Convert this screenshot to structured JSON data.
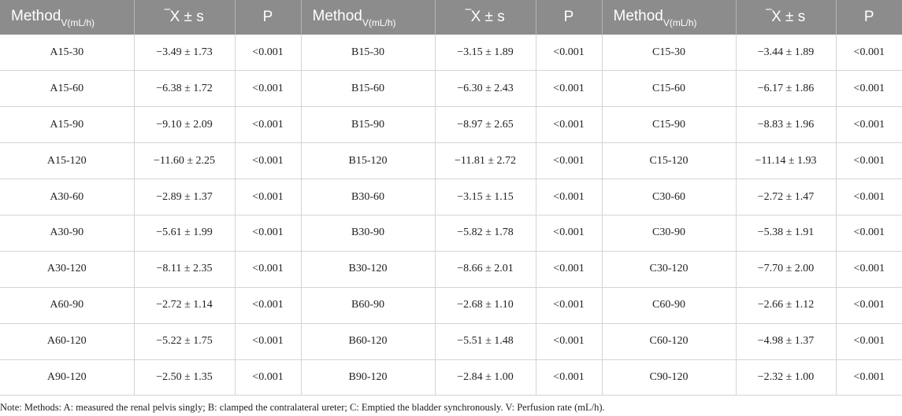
{
  "table": {
    "headers": [
      {
        "main": "Method",
        "sub": "V(mL/h)"
      },
      {
        "main": "‾X ± s",
        "sub": ""
      },
      {
        "main": "P",
        "sub": ""
      },
      {
        "main": "Method",
        "sub": "V(mL/h)"
      },
      {
        "main": "‾X ± s",
        "sub": ""
      },
      {
        "main": "P",
        "sub": ""
      },
      {
        "main": "Method",
        "sub": "V(mL/h)"
      },
      {
        "main": "‾X ± s",
        "sub": ""
      },
      {
        "main": "P",
        "sub": ""
      }
    ],
    "rows": [
      [
        "A15-30",
        "−3.49 ± 1.73",
        "<0.001",
        "B15-30",
        "−3.15 ± 1.89",
        "<0.001",
        "C15-30",
        "−3.44 ± 1.89",
        "<0.001"
      ],
      [
        "A15-60",
        "−6.38 ± 1.72",
        "<0.001",
        "B15-60",
        "−6.30 ± 2.43",
        "<0.001",
        "C15-60",
        "−6.17 ± 1.86",
        "<0.001"
      ],
      [
        "A15-90",
        "−9.10 ± 2.09",
        "<0.001",
        "B15-90",
        "−8.97 ± 2.65",
        "<0.001",
        "C15-90",
        "−8.83 ± 1.96",
        "<0.001"
      ],
      [
        "A15-120",
        "−11.60 ± 2.25",
        "<0.001",
        "B15-120",
        "−11.81 ± 2.72",
        "<0.001",
        "C15-120",
        "−11.14 ± 1.93",
        "<0.001"
      ],
      [
        "A30-60",
        "−2.89 ± 1.37",
        "<0.001",
        "B30-60",
        "−3.15 ± 1.15",
        "<0.001",
        "C30-60",
        "−2.72 ± 1.47",
        "<0.001"
      ],
      [
        "A30-90",
        "−5.61 ± 1.99",
        "<0.001",
        "B30-90",
        "−5.82 ± 1.78",
        "<0.001",
        "C30-90",
        "−5.38 ± 1.91",
        "<0.001"
      ],
      [
        "A30-120",
        "−8.11 ± 2.35",
        "<0.001",
        "B30-120",
        "−8.66 ± 2.01",
        "<0.001",
        "C30-120",
        "−7.70 ± 2.00",
        "<0.001"
      ],
      [
        "A60-90",
        "−2.72 ± 1.14",
        "<0.001",
        "B60-90",
        "−2.68 ± 1.10",
        "<0.001",
        "C60-90",
        "−2.66 ± 1.12",
        "<0.001"
      ],
      [
        "A60-120",
        "−5.22 ± 1.75",
        "<0.001",
        "B60-120",
        "−5.51 ± 1.48",
        "<0.001",
        "C60-120",
        "−4.98 ± 1.37",
        "<0.001"
      ],
      [
        "A90-120",
        "−2.50 ± 1.35",
        "<0.001",
        "B90-120",
        "−2.84 ± 1.00",
        "<0.001",
        "C90-120",
        "−2.32 ± 1.00",
        "<0.001"
      ]
    ]
  },
  "note": "Note: Methods: A: measured the renal pelvis singly; B: clamped the contralateral ureter; C: Emptied the bladder synchronously. V: Perfusion rate (mL/h).",
  "colors": {
    "header_bg": "#8c8c8c",
    "header_text": "#ffffff",
    "grid": "#d4d4d4"
  }
}
